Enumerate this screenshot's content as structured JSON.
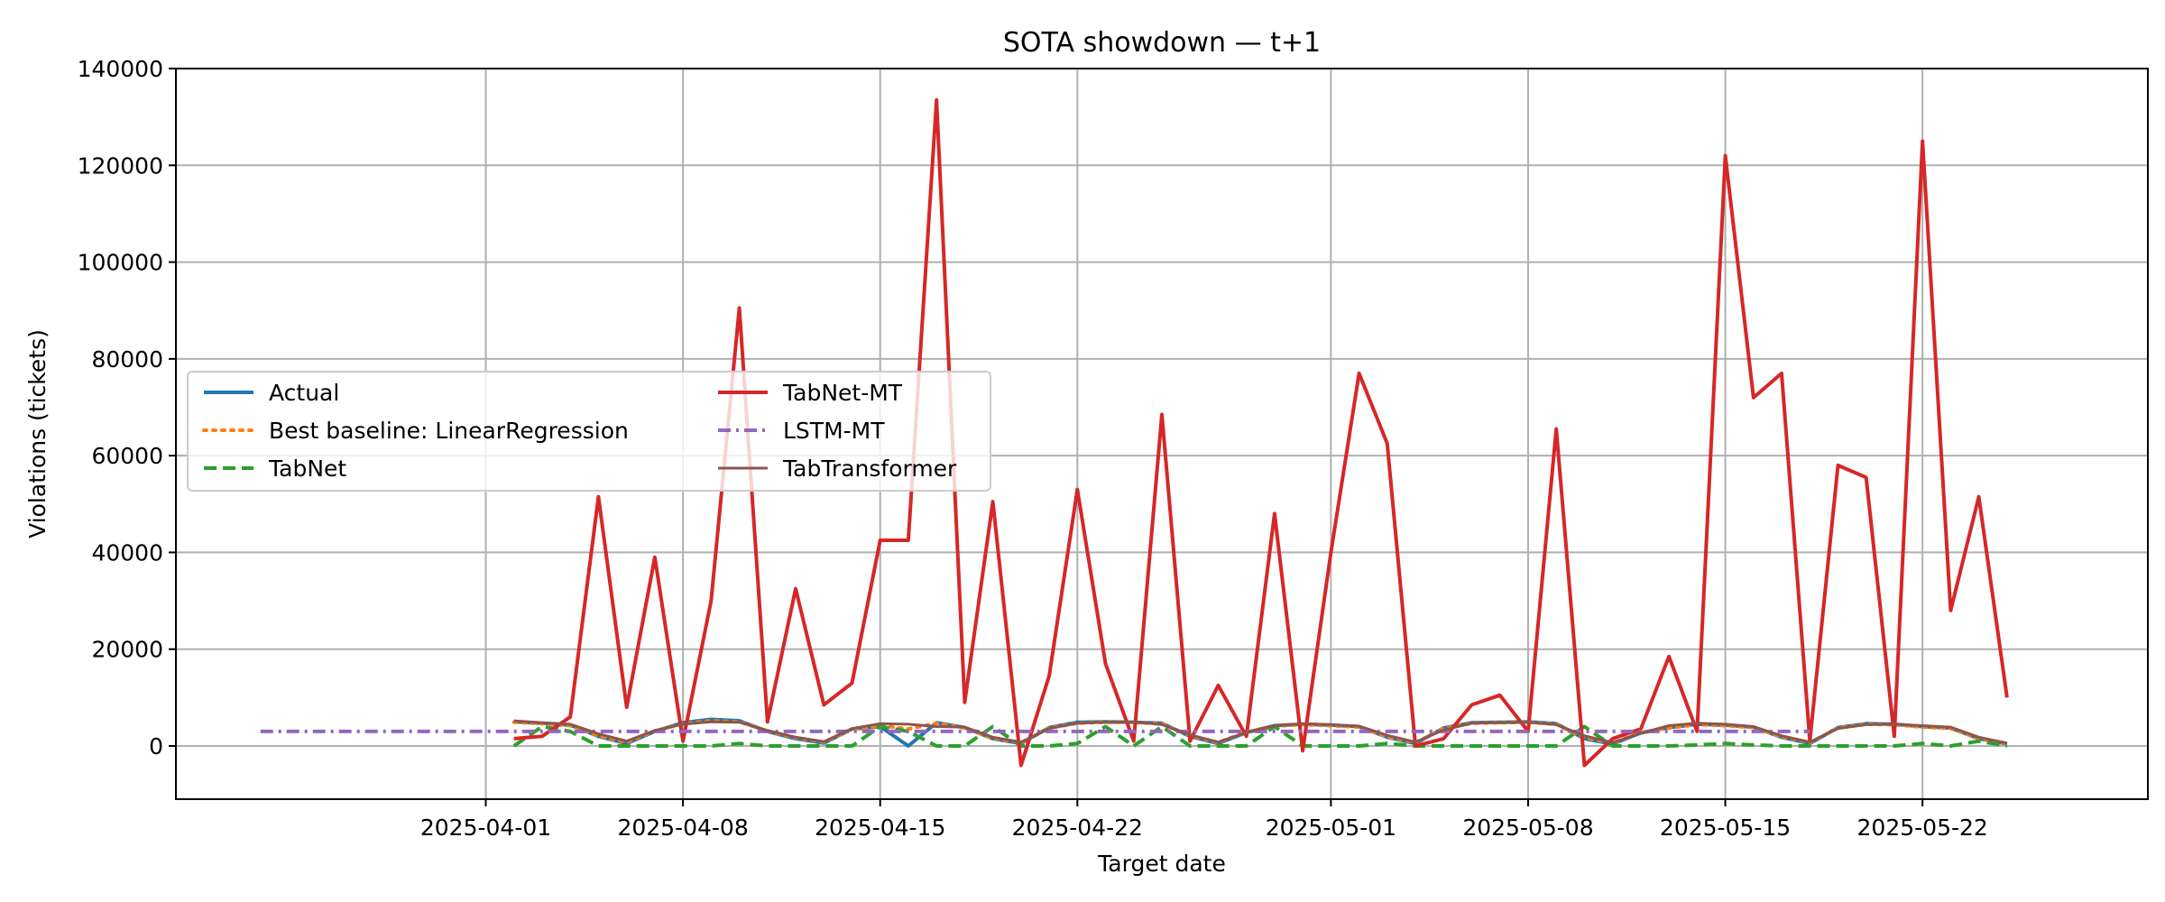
{
  "chart_data": {
    "type": "line",
    "title": "SOTA showdown — t+1",
    "xlabel": "Target date",
    "ylabel": "Violations (tickets)",
    "xlim": [
      "2025-03-21",
      "2025-05-30"
    ],
    "ylim": [
      -11000,
      140000
    ],
    "yticks": [
      0,
      20000,
      40000,
      60000,
      80000,
      100000,
      120000,
      140000
    ],
    "xticks": [
      "2025-04-01",
      "2025-04-08",
      "2025-04-15",
      "2025-04-22",
      "2025-05-01",
      "2025-05-08",
      "2025-05-15",
      "2025-05-22"
    ],
    "grid": true,
    "legend_placement": "center-left",
    "x": [
      "2025-04-02",
      "2025-04-03",
      "2025-04-04",
      "2025-04-05",
      "2025-04-06",
      "2025-04-07",
      "2025-04-08",
      "2025-04-09",
      "2025-04-10",
      "2025-04-11",
      "2025-04-12",
      "2025-04-13",
      "2025-04-14",
      "2025-04-15",
      "2025-04-16",
      "2025-04-17",
      "2025-04-18",
      "2025-04-19",
      "2025-04-20",
      "2025-04-21",
      "2025-04-22",
      "2025-04-23",
      "2025-04-24",
      "2025-04-25",
      "2025-04-26",
      "2025-04-27",
      "2025-04-28",
      "2025-04-29",
      "2025-04-30",
      "2025-05-01",
      "2025-05-02",
      "2025-05-03",
      "2025-05-04",
      "2025-05-05",
      "2025-05-06",
      "2025-05-07",
      "2025-05-08",
      "2025-05-09",
      "2025-05-10",
      "2025-05-11",
      "2025-05-12",
      "2025-05-13",
      "2025-05-14",
      "2025-05-15",
      "2025-05-16",
      "2025-05-17",
      "2025-05-18",
      "2025-05-19",
      "2025-05-20",
      "2025-05-21",
      "2025-05-22",
      "2025-05-23",
      "2025-05-24",
      "2025-05-25"
    ],
    "series": [
      {
        "name": "Actual",
        "color": "#1f77b4",
        "dash": "solid",
        "width": 4,
        "values": [
          5000,
          4700,
          4300,
          2000,
          500,
          3000,
          4800,
          5500,
          5200,
          3000,
          1500,
          600,
          3500,
          4000,
          0,
          4800,
          3800,
          1500,
          500,
          3800,
          4900,
          5000,
          4900,
          4700,
          2000,
          500,
          2800,
          4200,
          4500,
          4300,
          4000,
          1800,
          500,
          3700,
          4800,
          4900,
          5000,
          4600,
          1500,
          400,
          2700,
          3800,
          4500,
          4300,
          3900,
          1800,
          500,
          3800,
          4600,
          4500,
          4000,
          3700,
          1500,
          400
        ]
      },
      {
        "name": "Best baseline: LinearRegression",
        "color": "#ff7f0e",
        "dash": "dotted",
        "width": 4,
        "values": [
          4900,
          4600,
          4200,
          2100,
          700,
          3100,
          4600,
          5200,
          5000,
          3100,
          1700,
          800,
          3400,
          4200,
          3500,
          4700,
          3700,
          1600,
          700,
          3700,
          4700,
          4900,
          4800,
          4600,
          2100,
          700,
          2900,
          4100,
          4400,
          4200,
          3900,
          1900,
          700,
          3600,
          4700,
          4800,
          4900,
          4500,
          1700,
          600,
          2800,
          3700,
          4400,
          4200,
          3800,
          1900,
          700,
          3700,
          4500,
          4400,
          3900,
          3600,
          1600,
          500
        ]
      },
      {
        "name": "TabNet",
        "color": "#2ca02c",
        "dash": "dashed",
        "width": 4,
        "values": [
          0,
          4000,
          3000,
          0,
          0,
          0,
          0,
          0,
          500,
          0,
          0,
          0,
          0,
          4000,
          3000,
          0,
          0,
          4000,
          0,
          0,
          500,
          4000,
          0,
          4000,
          0,
          0,
          0,
          4000,
          0,
          0,
          0,
          500,
          0,
          0,
          0,
          0,
          0,
          0,
          4000,
          0,
          0,
          0,
          200,
          500,
          200,
          0,
          0,
          0,
          0,
          0,
          500,
          0,
          1000,
          0
        ]
      },
      {
        "name": "TabNet-MT",
        "color": "#d62728",
        "dash": "solid",
        "width": 4,
        "values": [
          1500,
          2000,
          6000,
          51500,
          8000,
          39000,
          1000,
          30000,
          90500,
          5000,
          32500,
          8500,
          13000,
          42500,
          42500,
          133500,
          9000,
          50500,
          -4000,
          14500,
          53000,
          17000,
          1000,
          68500,
          1000,
          12500,
          2000,
          48000,
          -1000,
          40000,
          77000,
          62500,
          0,
          1500,
          8500,
          10500,
          3000,
          65500,
          -4000,
          1500,
          3500,
          18500,
          3000,
          122000,
          72000,
          77000,
          1000,
          58000,
          55500,
          2000,
          125000,
          28000,
          51500,
          10000
        ]
      },
      {
        "name": "LSTM-MT",
        "color": "#9467bd",
        "dash": "dashdot",
        "width": 4,
        "x": [
          "2025-03-24",
          "2025-05-18"
        ],
        "values": [
          3000,
          3000
        ]
      },
      {
        "name": "TabTransformer",
        "color": "#8c564b",
        "dash": "solid",
        "width": 3,
        "values": [
          5200,
          4800,
          4500,
          2500,
          1000,
          3200,
          4500,
          5000,
          4900,
          3200,
          1800,
          900,
          3600,
          4600,
          4500,
          4000,
          3900,
          1800,
          800,
          3600,
          4700,
          4900,
          5000,
          4400,
          2300,
          800,
          2800,
          4200,
          4600,
          4400,
          4100,
          2200,
          800,
          3300,
          4700,
          4800,
          4900,
          4400,
          2100,
          700,
          2600,
          4200,
          4700,
          4500,
          4000,
          2100,
          800,
          3600,
          4400,
          4500,
          4200,
          3900,
          1800,
          600
        ]
      }
    ]
  }
}
